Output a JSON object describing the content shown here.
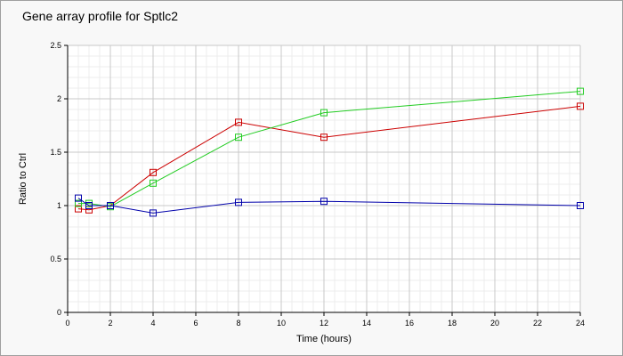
{
  "chart_data": {
    "type": "line",
    "title": "Gene array profile for Sptlc2",
    "xlabel": "Time (hours)",
    "ylabel": "Ratio to Ctrl",
    "xlim": [
      0,
      24
    ],
    "ylim": [
      0,
      2.5
    ],
    "xticks": [
      0,
      2,
      4,
      6,
      8,
      10,
      12,
      14,
      16,
      18,
      20,
      22,
      24
    ],
    "yticks": [
      0,
      0.5,
      1,
      1.5,
      2,
      2.5
    ],
    "xtick_labels": [
      "0",
      "2",
      "4",
      "6",
      "8",
      "10",
      "12",
      "14",
      "16",
      "18",
      "20",
      "22",
      "24"
    ],
    "ytick_labels": [
      "0",
      "0.5",
      "1",
      "1.5",
      "2",
      "2.5"
    ],
    "grid": true,
    "minor_grid": true,
    "legend": false,
    "marker": "hollow-square",
    "colors": {
      "plot_background": "#ffffff",
      "major_grid": "#c8c8c8",
      "minor_grid": "#ececec",
      "axis": "#000000"
    },
    "series": [
      {
        "color": "#cc0000",
        "x": [
          0.5,
          1,
          2,
          4,
          8,
          12,
          24
        ],
        "y": [
          0.97,
          0.96,
          1.0,
          1.31,
          1.78,
          1.64,
          1.93
        ]
      },
      {
        "color": "#22cc22",
        "x": [
          0.5,
          1,
          2,
          4,
          8,
          12,
          24
        ],
        "y": [
          1.02,
          1.02,
          0.99,
          1.21,
          1.64,
          1.87,
          2.07
        ]
      },
      {
        "color": "#0000aa",
        "x": [
          0.5,
          1,
          2,
          4,
          8,
          12,
          24
        ],
        "y": [
          1.07,
          1.0,
          1.0,
          0.93,
          1.03,
          1.04,
          1.0
        ]
      }
    ]
  }
}
